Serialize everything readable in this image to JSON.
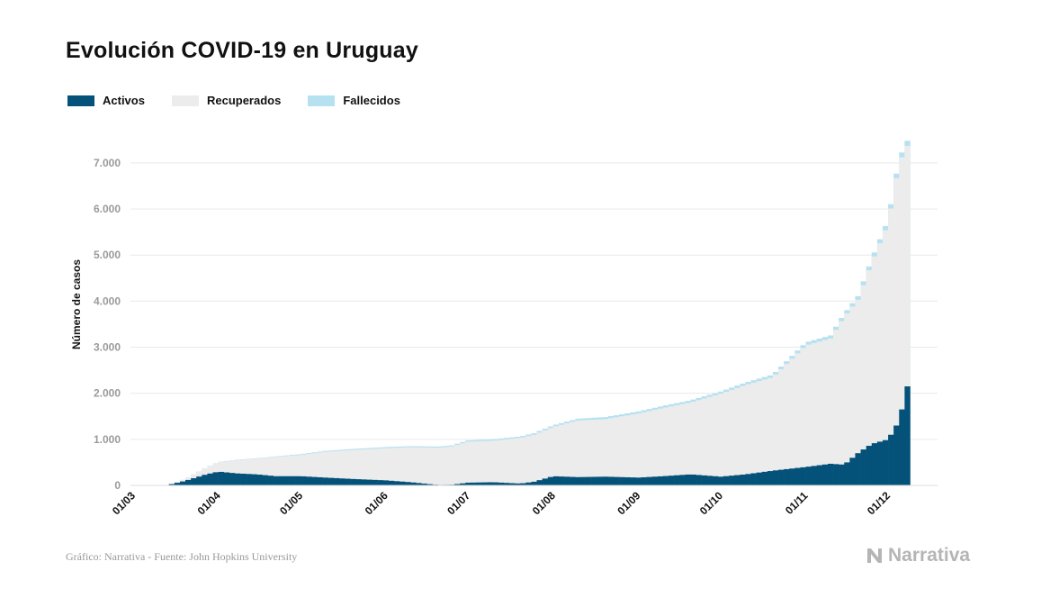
{
  "title": "Evolución COVID-19 en Uruguay",
  "legend": [
    {
      "label": "Activos",
      "color": "#04527a"
    },
    {
      "label": "Recuperados",
      "color": "#ececec"
    },
    {
      "label": "Fallecidos",
      "color": "#b6e1f1"
    }
  ],
  "footer": {
    "source": "Gráfico: Narrativa - Fuente: John Hopkins University",
    "brand": "Narrativa",
    "brand_color": "#b5b5b5"
  },
  "chart_data": {
    "type": "area",
    "stacked": true,
    "ylabel": "Número de casos",
    "ylim": [
      0,
      7800
    ],
    "y_ticks": [
      0,
      1000,
      2000,
      3000,
      4000,
      5000,
      6000,
      7000
    ],
    "y_tick_labels": [
      "0",
      "1.000",
      "2.000",
      "3.000",
      "4.000",
      "5.000",
      "6.000",
      "7.000"
    ],
    "x_tick_labels": [
      "01/03",
      "01/04",
      "01/05",
      "01/06",
      "01/07",
      "01/08",
      "01/09",
      "01/10",
      "01/11",
      "01/12"
    ],
    "x": [
      "2020-03-13",
      "2020-03-20",
      "2020-03-27",
      "2020-04-01",
      "2020-04-08",
      "2020-04-15",
      "2020-04-22",
      "2020-05-01",
      "2020-05-10",
      "2020-05-20",
      "2020-06-01",
      "2020-06-10",
      "2020-06-20",
      "2020-06-25",
      "2020-07-01",
      "2020-07-10",
      "2020-07-20",
      "2020-07-25",
      "2020-08-01",
      "2020-08-10",
      "2020-08-20",
      "2020-09-01",
      "2020-09-10",
      "2020-09-20",
      "2020-10-01",
      "2020-10-10",
      "2020-10-20",
      "2020-11-01",
      "2020-11-10",
      "2020-11-15",
      "2020-11-20",
      "2020-11-25",
      "2020-12-01",
      "2020-12-05",
      "2020-12-08"
    ],
    "series": [
      {
        "name": "Activos",
        "color": "#04527a",
        "values": [
          0,
          100,
          230,
          300,
          260,
          240,
          200,
          200,
          170,
          140,
          110,
          70,
          10,
          15,
          60,
          70,
          40,
          80,
          200,
          180,
          190,
          170,
          200,
          240,
          190,
          240,
          320,
          400,
          470,
          450,
          700,
          900,
          1000,
          1400,
          2150
        ]
      },
      {
        "name": "Recuperados",
        "color": "#ececec",
        "values": [
          0,
          40,
          140,
          200,
          290,
          340,
          420,
          460,
          560,
          630,
          700,
          760,
          810,
          830,
          890,
          900,
          990,
          1020,
          1070,
          1230,
          1250,
          1390,
          1480,
          1560,
          1800,
          1940,
          2030,
          2640,
          2720,
          3210,
          3330,
          3930,
          4680,
          5600,
          5220
        ]
      },
      {
        "name": "Fallecidos",
        "color": "#b6e1f1",
        "values": [
          0,
          1,
          1,
          7,
          8,
          9,
          11,
          18,
          19,
          22,
          23,
          23,
          23,
          24,
          28,
          31,
          32,
          33,
          34,
          39,
          44,
          45,
          46,
          47,
          48,
          51,
          55,
          62,
          66,
          70,
          77,
          83,
          92,
          100,
          110
        ]
      }
    ]
  }
}
